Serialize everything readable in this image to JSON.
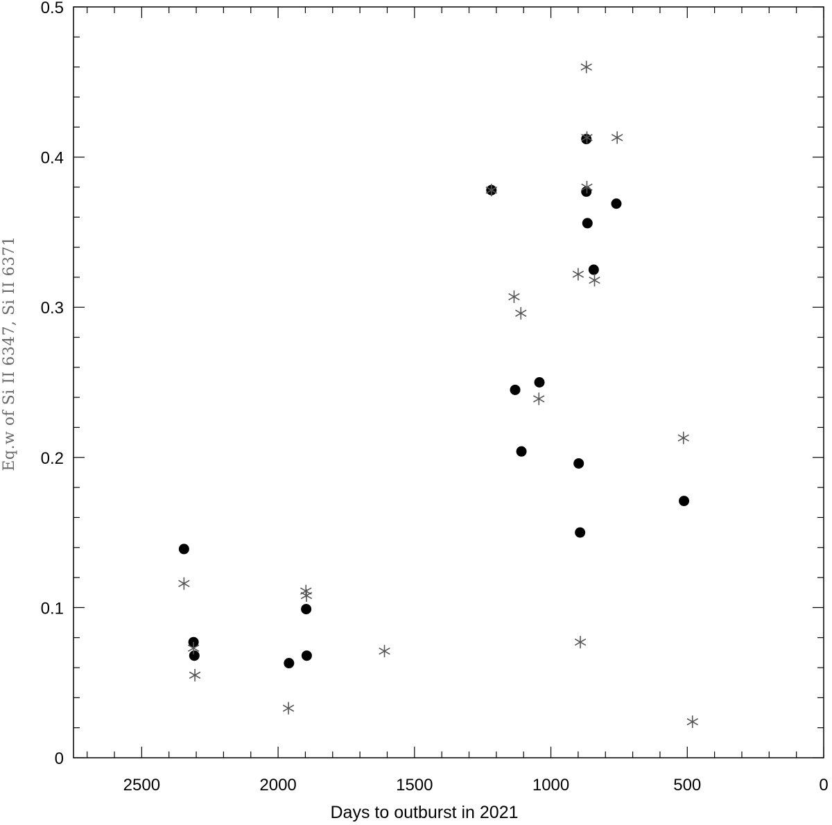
{
  "chart_data": {
    "type": "scatter",
    "title": "",
    "xlabel": "Days to outburst in 2021",
    "ylabel": "Eq.w of Si II 6347, Si II 6371",
    "xlim": [
      2750,
      0
    ],
    "ylim": [
      0,
      0.5
    ],
    "x_ticks": [
      2500,
      2000,
      1500,
      1000,
      500,
      0
    ],
    "x_tick_labels": [
      "2500",
      "2000",
      "1500",
      "1000",
      "500",
      "0"
    ],
    "y_ticks": [
      0,
      0.1,
      0.2,
      0.3,
      0.4,
      0.5
    ],
    "y_tick_labels": [
      "0",
      "0.1",
      "0.2",
      "0.3",
      "0.4",
      "0.5"
    ],
    "grid": false,
    "legend": "none",
    "series": [
      {
        "marker": "filled-circle",
        "color": "#000000",
        "points": [
          {
            "x": 2345,
            "y": 0.139
          },
          {
            "x": 2310,
            "y": 0.077
          },
          {
            "x": 2307,
            "y": 0.068
          },
          {
            "x": 1960,
            "y": 0.063
          },
          {
            "x": 1897,
            "y": 0.099
          },
          {
            "x": 1895,
            "y": 0.068
          },
          {
            "x": 1218,
            "y": 0.378
          },
          {
            "x": 1131,
            "y": 0.245
          },
          {
            "x": 1108,
            "y": 0.204
          },
          {
            "x": 1042,
            "y": 0.25
          },
          {
            "x": 898,
            "y": 0.196
          },
          {
            "x": 893,
            "y": 0.15
          },
          {
            "x": 870,
            "y": 0.412
          },
          {
            "x": 870,
            "y": 0.377
          },
          {
            "x": 866,
            "y": 0.356
          },
          {
            "x": 843,
            "y": 0.325
          },
          {
            "x": 760,
            "y": 0.369
          },
          {
            "x": 512,
            "y": 0.171
          }
        ]
      },
      {
        "marker": "asterisk",
        "color": "#555555",
        "points": [
          {
            "x": 2345,
            "y": 0.116
          },
          {
            "x": 2310,
            "y": 0.073
          },
          {
            "x": 2305,
            "y": 0.055
          },
          {
            "x": 1962,
            "y": 0.033
          },
          {
            "x": 1898,
            "y": 0.111
          },
          {
            "x": 1896,
            "y": 0.108
          },
          {
            "x": 1610,
            "y": 0.071
          },
          {
            "x": 1218,
            "y": 0.378
          },
          {
            "x": 1135,
            "y": 0.307
          },
          {
            "x": 1110,
            "y": 0.296
          },
          {
            "x": 1044,
            "y": 0.239
          },
          {
            "x": 900,
            "y": 0.322
          },
          {
            "x": 892,
            "y": 0.077
          },
          {
            "x": 870,
            "y": 0.46
          },
          {
            "x": 868,
            "y": 0.413
          },
          {
            "x": 868,
            "y": 0.38
          },
          {
            "x": 840,
            "y": 0.318
          },
          {
            "x": 757,
            "y": 0.413
          },
          {
            "x": 514,
            "y": 0.213
          },
          {
            "x": 481,
            "y": 0.024
          }
        ]
      }
    ]
  }
}
